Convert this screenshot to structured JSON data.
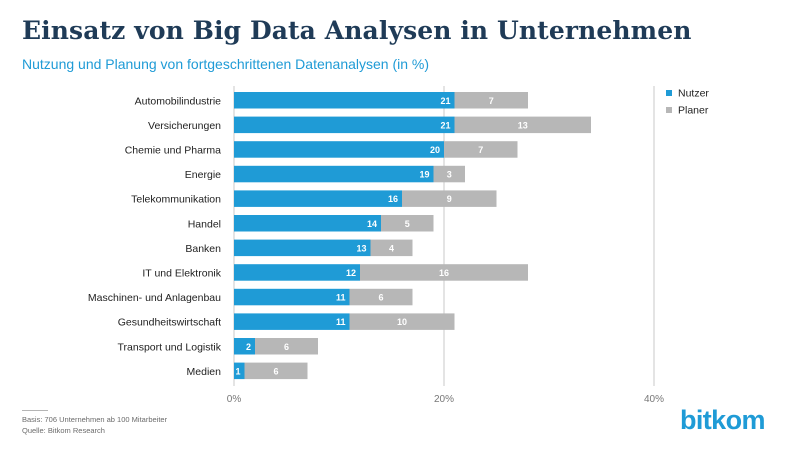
{
  "header": {
    "title": "Einsatz von Big Data Analysen in Unternehmen",
    "subtitle": "Nutzung und Planung von fortgeschrittenen Datenanalysen (in %)"
  },
  "footer": {
    "basis": "Basis: 706 Unternehmen ab 100 Mitarbeiter",
    "source": "Quelle: Bitkom Research"
  },
  "logo_text": "bitkom",
  "colors": {
    "nutzer": "#1f9bd6",
    "planer": "#b7b7b7",
    "title": "#1f3b57",
    "subtitle": "#1f9bd6",
    "grid": "#c8c8c8"
  },
  "chart_data": {
    "type": "bar",
    "orientation": "horizontal",
    "stacked": true,
    "categories": [
      "Automobilindustrie",
      "Versicherungen",
      "Chemie und Pharma",
      "Energie",
      "Telekommunikation",
      "Handel",
      "Banken",
      "IT und Elektronik",
      "Maschinen- und Anlagenbau",
      "Gesundheitswirtschaft",
      "Transport und Logistik",
      "Medien"
    ],
    "series": [
      {
        "name": "Nutzer",
        "values": [
          21,
          21,
          20,
          19,
          16,
          14,
          13,
          12,
          11,
          11,
          2,
          1
        ]
      },
      {
        "name": "Planer",
        "values": [
          7,
          13,
          7,
          3,
          9,
          5,
          4,
          16,
          6,
          10,
          6,
          6
        ]
      }
    ],
    "xlim": [
      0,
      40
    ],
    "xticks": [
      "0%",
      "20%",
      "40%"
    ],
    "grid": true,
    "legend": "top-right",
    "data_labels": true
  }
}
